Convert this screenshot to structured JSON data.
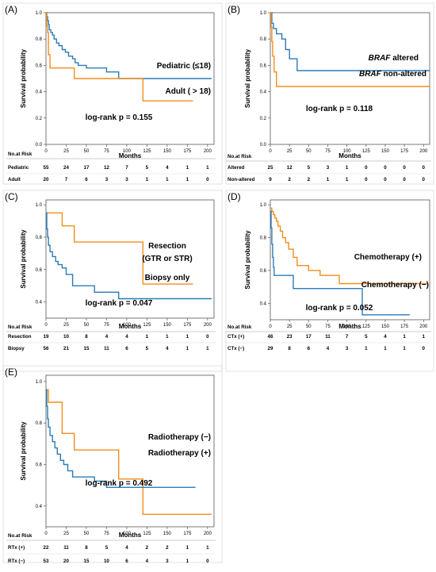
{
  "colors": {
    "blue": "#2c7bb6",
    "orange": "#f28e1c"
  },
  "chart_data": [
    {
      "type": "line",
      "panel": "(A)",
      "ylabel": "Survival probability",
      "xlabel": "Months",
      "xticks": [
        0,
        25,
        50,
        75,
        100,
        125,
        150,
        175,
        200
      ],
      "yticks": [
        0.0,
        0.2,
        0.4,
        0.6,
        0.8,
        1.0
      ],
      "xlim": [
        0,
        208
      ],
      "ylim": [
        0,
        1
      ],
      "pvalue": "log-rank p = 0.155",
      "series": [
        {
          "name": "Pediatric (≤18)",
          "color": "blue",
          "x": [
            0,
            1,
            2,
            3,
            4,
            6,
            8,
            10,
            13,
            16,
            20,
            24,
            28,
            33,
            36,
            40,
            50,
            75,
            90,
            205
          ],
          "y": [
            1.0,
            0.97,
            0.94,
            0.91,
            0.87,
            0.85,
            0.83,
            0.8,
            0.77,
            0.75,
            0.72,
            0.7,
            0.67,
            0.65,
            0.62,
            0.6,
            0.58,
            0.55,
            0.5,
            0.5
          ]
        },
        {
          "name": "Adult ( > 18)",
          "color": "orange",
          "x": [
            0,
            1,
            2,
            3,
            5,
            35,
            120,
            182
          ],
          "y": [
            1.0,
            0.9,
            0.85,
            0.68,
            0.58,
            0.5,
            0.33,
            0.33
          ]
        }
      ],
      "risk_header": "No.at Risk",
      "risk_xlabel": "Months",
      "risk_rows": [
        {
          "label": "Pediatric",
          "values": [
            "55",
            "24",
            "17",
            "12",
            "7",
            "5",
            "4",
            "1",
            "1"
          ]
        },
        {
          "label": "Adult",
          "values": [
            "20",
            "7",
            "6",
            "3",
            "3",
            "1",
            "1",
            "1",
            "0"
          ]
        }
      ]
    },
    {
      "type": "line",
      "panel": "(B)",
      "ylabel": "Survival probability",
      "xlabel": "Months",
      "xticks": [
        0,
        25,
        50,
        75,
        100,
        125,
        150,
        175,
        200
      ],
      "yticks": [
        0.0,
        0.2,
        0.4,
        0.6,
        0.8,
        1.0
      ],
      "xlim": [
        0,
        208
      ],
      "ylim": [
        0,
        1
      ],
      "pvalue": "log-rank p = 0.118",
      "series": [
        {
          "name": "altered",
          "name_prefix": "BRAF",
          "color": "blue",
          "x": [
            0,
            2,
            4,
            8,
            15,
            20,
            25,
            35,
            208
          ],
          "y": [
            1.0,
            0.92,
            0.88,
            0.84,
            0.8,
            0.72,
            0.65,
            0.56,
            0.56
          ]
        },
        {
          "name": "non-altered",
          "name_prefix": "BRAF",
          "color": "orange",
          "x": [
            0,
            1,
            2,
            3,
            5,
            8,
            208
          ],
          "y": [
            1.0,
            0.89,
            0.78,
            0.67,
            0.55,
            0.44,
            0.44
          ]
        }
      ],
      "risk_header": "No.at Risk",
      "risk_xlabel": "Months",
      "risk_rows": [
        {
          "label": "Altered",
          "values": [
            "25",
            "12",
            "5",
            "3",
            "1",
            "0",
            "0",
            "0",
            "0"
          ]
        },
        {
          "label": "Non-altered",
          "values": [
            "9",
            "2",
            "2",
            "1",
            "1",
            "0",
            "0",
            "0",
            "0"
          ]
        }
      ]
    },
    {
      "type": "line",
      "panel": "(C)",
      "ylabel": "Survival probability",
      "xlabel": "Months",
      "xticks": [
        0,
        25,
        50,
        75,
        100,
        125,
        150,
        175,
        200
      ],
      "yticks": [
        0.4,
        0.6,
        0.8,
        1.0
      ],
      "xlim": [
        0,
        208
      ],
      "ylim": [
        0.3,
        1.03
      ],
      "pvalue": "log-rank p = 0.047",
      "series": [
        {
          "name": "Resection",
          "name_line2": "(GTR or STR)",
          "color": "orange",
          "x": [
            0,
            20,
            35,
            120,
            182
          ],
          "y": [
            0.95,
            0.87,
            0.77,
            0.51,
            0.51
          ]
        },
        {
          "name": "Biopsy only",
          "color": "blue",
          "x": [
            0,
            1,
            2,
            3,
            5,
            8,
            12,
            15,
            20,
            25,
            33,
            60,
            90,
            205
          ],
          "y": [
            0.95,
            0.85,
            0.8,
            0.75,
            0.71,
            0.68,
            0.65,
            0.63,
            0.61,
            0.57,
            0.5,
            0.46,
            0.42,
            0.42
          ]
        }
      ],
      "risk_header": "No.at Risk",
      "risk_xlabel": "Months",
      "risk_rows": [
        {
          "label": "Resection",
          "values": [
            "19",
            "10",
            "8",
            "4",
            "4",
            "1",
            "1",
            "1",
            "0"
          ]
        },
        {
          "label": "Biopsy",
          "values": [
            "56",
            "21",
            "15",
            "11",
            "6",
            "5",
            "4",
            "1",
            "1"
          ]
        }
      ]
    },
    {
      "type": "line",
      "panel": "(D)",
      "ylabel": "Survival probability",
      "xlabel": "Months",
      "xticks": [
        0,
        25,
        50,
        75,
        100,
        125,
        150,
        175,
        200
      ],
      "yticks": [
        0.4,
        0.6,
        0.8,
        1.0
      ],
      "xlim": [
        0,
        208
      ],
      "ylim": [
        0.3,
        1.03
      ],
      "pvalue": "log-rank p = 0.052",
      "series": [
        {
          "name": "Chemotherapy (+)",
          "color": "orange",
          "x": [
            0,
            2,
            4,
            6,
            8,
            10,
            13,
            16,
            20,
            24,
            30,
            35,
            50,
            65,
            90,
            205
          ],
          "y": [
            0.98,
            0.96,
            0.94,
            0.92,
            0.9,
            0.87,
            0.84,
            0.8,
            0.77,
            0.73,
            0.68,
            0.63,
            0.6,
            0.57,
            0.52,
            0.52
          ]
        },
        {
          "name": "Chemotherapy (−)",
          "color": "blue",
          "x": [
            0,
            1,
            2,
            3,
            4,
            5,
            30,
            120,
            182
          ],
          "y": [
            0.96,
            0.86,
            0.76,
            0.68,
            0.62,
            0.57,
            0.49,
            0.33,
            0.33
          ]
        }
      ],
      "risk_header": "No.at Risk",
      "risk_xlabel": "Months",
      "risk_rows": [
        {
          "label": "CTx (+)",
          "values": [
            "46",
            "23",
            "17",
            "11",
            "7",
            "5",
            "4",
            "1",
            "1"
          ]
        },
        {
          "label": "CTx (−)",
          "values": [
            "29",
            "8",
            "6",
            "4",
            "3",
            "1",
            "1",
            "1",
            "0"
          ]
        }
      ]
    },
    {
      "type": "line",
      "panel": "(E)",
      "ylabel": "Survival probability",
      "xlabel": "Months",
      "xticks": [
        0,
        25,
        50,
        75,
        100,
        125,
        150,
        175,
        200
      ],
      "yticks": [
        0.4,
        0.6,
        0.8,
        1.0
      ],
      "xlim": [
        0,
        208
      ],
      "ylim": [
        0.3,
        1.03
      ],
      "pvalue": "log-rank p = 0.492",
      "series": [
        {
          "name": "Radiotherapy (−)",
          "color": "orange",
          "x": [
            0,
            3,
            20,
            35,
            90,
            120,
            205
          ],
          "y": [
            0.96,
            0.9,
            0.75,
            0.67,
            0.53,
            0.36,
            0.36
          ]
        },
        {
          "name": "Radiotherapy (+)",
          "color": "blue",
          "x": [
            0,
            1,
            2,
            3,
            5,
            8,
            11,
            14,
            18,
            22,
            27,
            33,
            60,
            75,
            185
          ],
          "y": [
            0.96,
            0.88,
            0.82,
            0.78,
            0.74,
            0.71,
            0.68,
            0.65,
            0.62,
            0.6,
            0.57,
            0.54,
            0.52,
            0.49,
            0.49
          ]
        }
      ],
      "risk_header": "No.at Risk",
      "risk_xlabel": "Months",
      "risk_rows": [
        {
          "label": "RTx (+)",
          "values": [
            "22",
            "11",
            "8",
            "5",
            "4",
            "2",
            "2",
            "1",
            "1"
          ]
        },
        {
          "label": "RTx (−)",
          "values": [
            "53",
            "20",
            "15",
            "10",
            "6",
            "4",
            "3",
            "1",
            "0"
          ]
        }
      ]
    }
  ]
}
